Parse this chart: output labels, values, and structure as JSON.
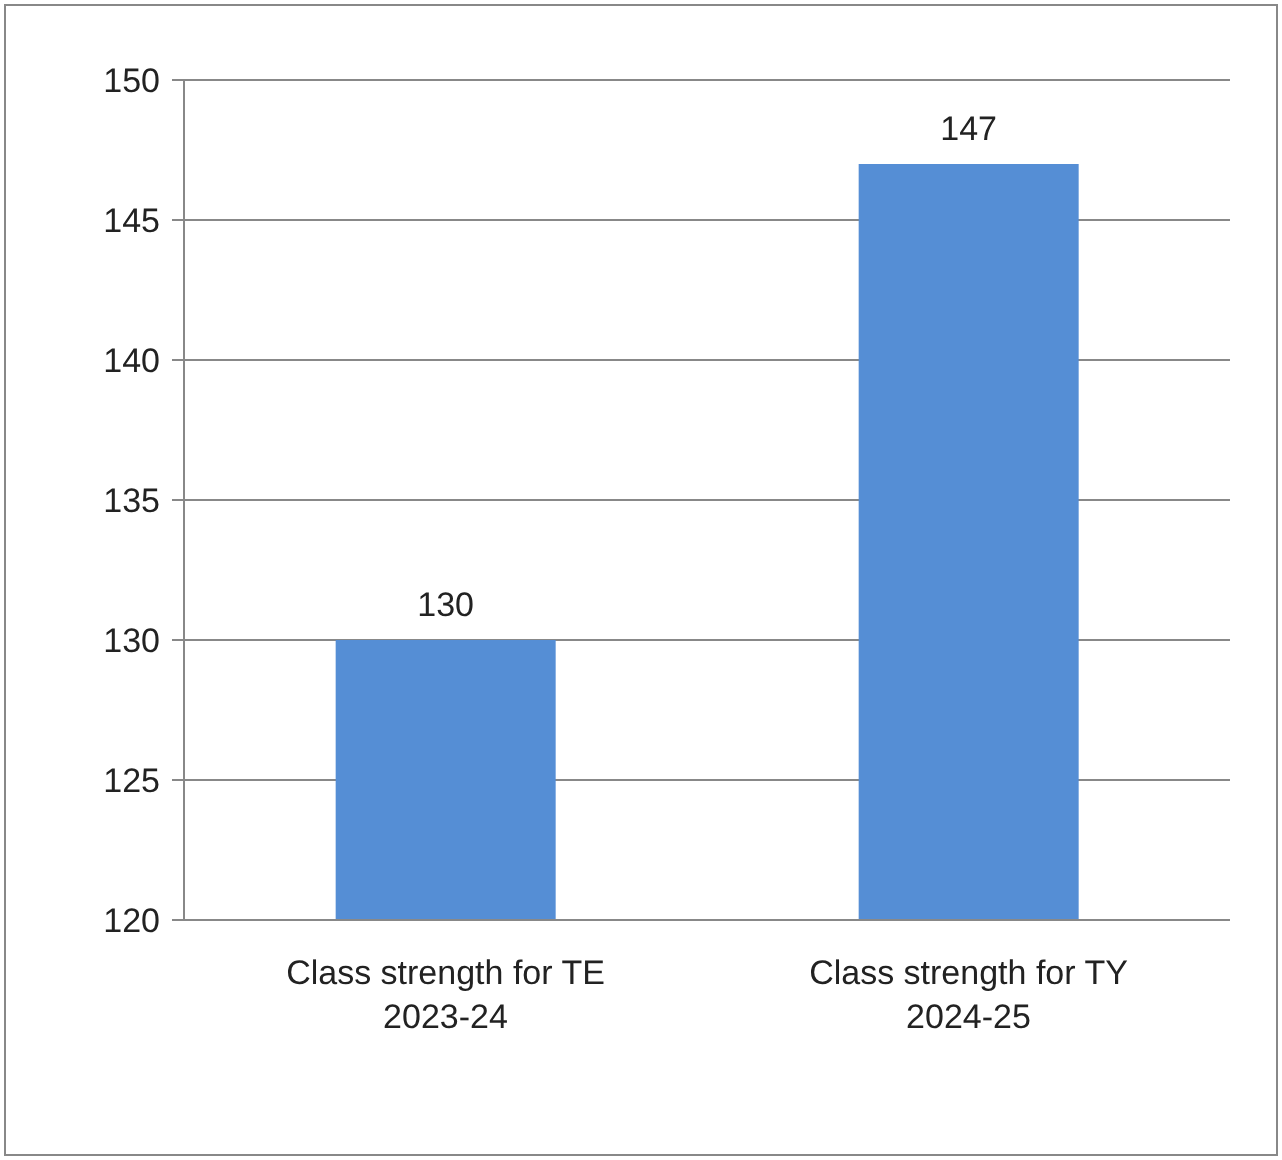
{
  "chart_data": {
    "type": "bar",
    "categories": [
      "Class strength for TE 2023-24",
      "Class strength for TY 2024-25"
    ],
    "values": [
      130,
      147
    ],
    "color": "#558ed5",
    "ylim": [
      120,
      150
    ],
    "yticks": [
      120,
      125,
      130,
      135,
      140,
      145,
      150
    ],
    "grid": "y",
    "data_labels": true
  }
}
